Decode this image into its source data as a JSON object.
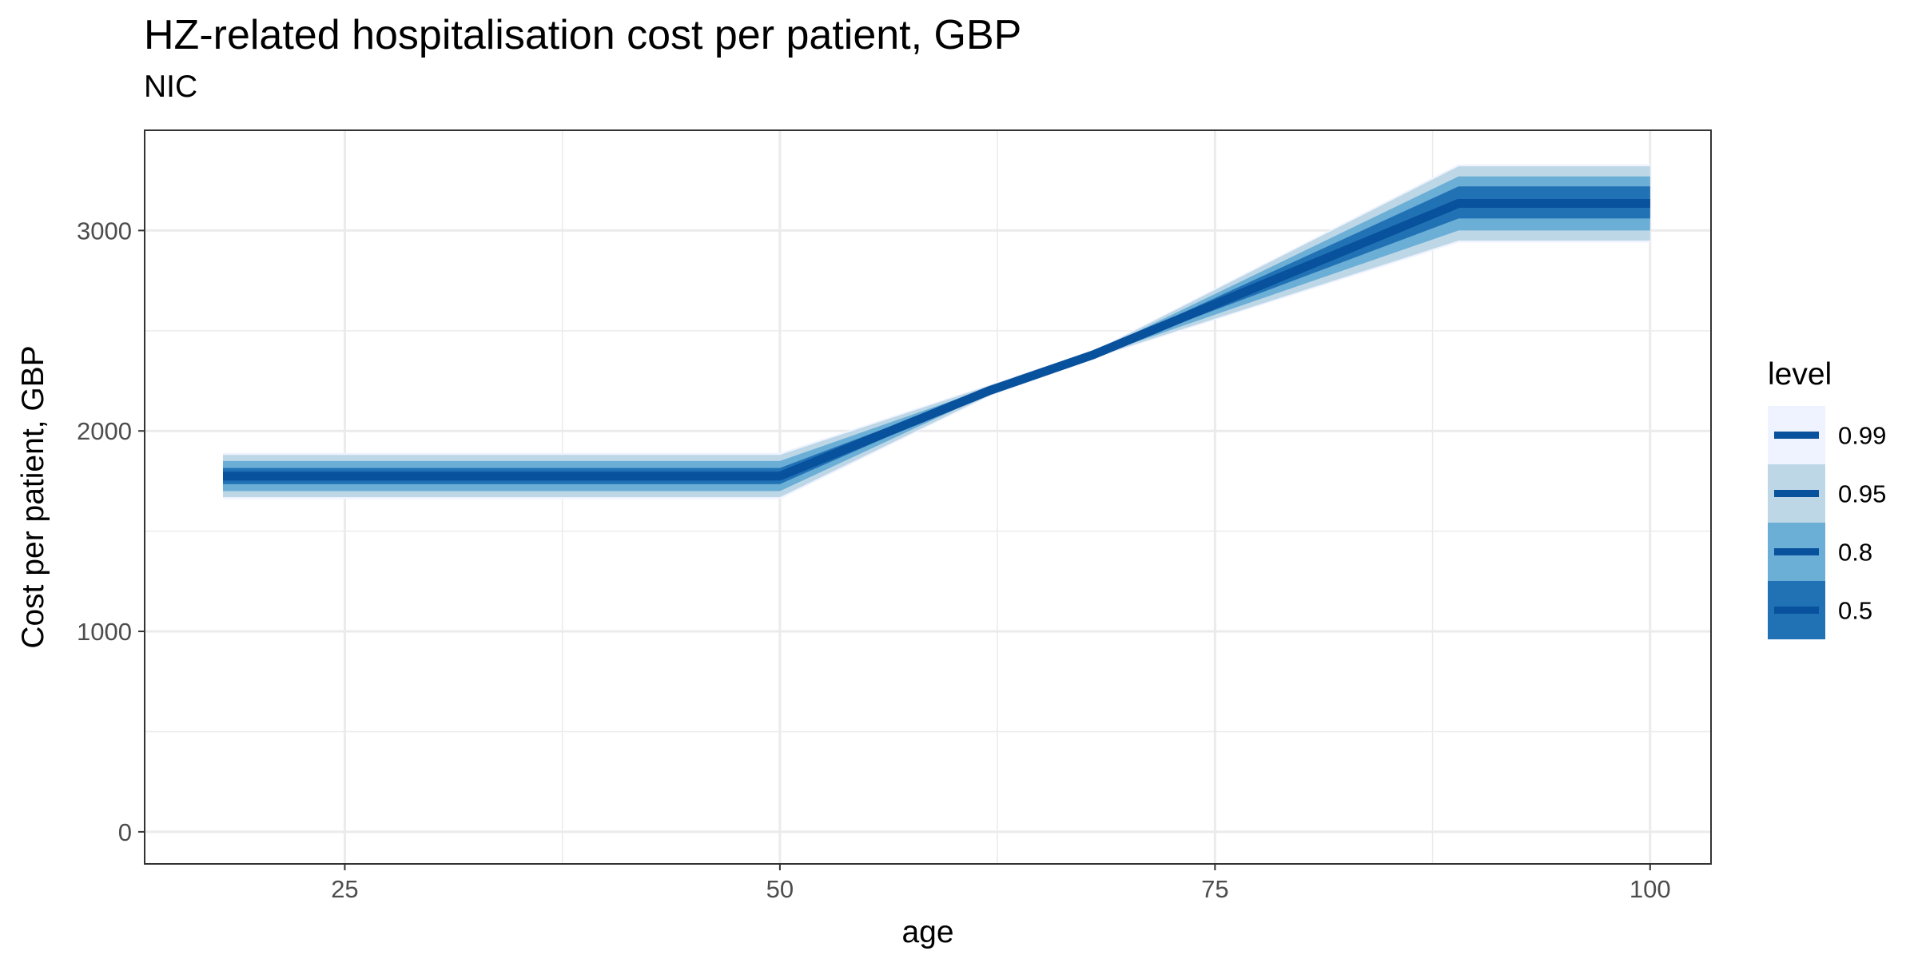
{
  "chart_data": {
    "type": "area",
    "title": "HZ-related hospitalisation cost per patient, GBP",
    "subtitle": "NIC",
    "xlabel": "age",
    "ylabel": "Cost per patient, GBP",
    "xlim": [
      13.5,
      103.5
    ],
    "ylim": [
      -160,
      3500
    ],
    "x_ticks": [
      25,
      50,
      75,
      100
    ],
    "y_ticks": [
      0,
      1000,
      2000,
      3000
    ],
    "grid": true,
    "legend": {
      "title": "level",
      "position": "right",
      "entries": [
        {
          "label": "0.99",
          "color": "#EFF3FF"
        },
        {
          "label": "0.95",
          "color": "#BDD7E7"
        },
        {
          "label": "0.8",
          "color": "#6BAED6"
        },
        {
          "label": "0.5",
          "color": "#2171B5"
        }
      ]
    },
    "line_color": "#08519C",
    "x": [
      18,
      50,
      62,
      68,
      89,
      100
    ],
    "median": [
      1775,
      1775,
      2200,
      2380,
      3135,
      3135
    ],
    "bands": [
      {
        "level": "0.99",
        "color": "#EFF3FF",
        "lower": [
          1660,
          1660,
          2170,
          2360,
          2940,
          2940
        ],
        "upper": [
          1890,
          1890,
          2230,
          2400,
          3330,
          3330
        ]
      },
      {
        "level": "0.95",
        "color": "#BDD7E7",
        "lower": [
          1670,
          1670,
          2175,
          2365,
          2950,
          2950
        ],
        "upper": [
          1880,
          1880,
          2225,
          2395,
          3320,
          3320
        ]
      },
      {
        "level": "0.8",
        "color": "#6BAED6",
        "lower": [
          1700,
          1700,
          2185,
          2370,
          3000,
          3000
        ],
        "upper": [
          1850,
          1850,
          2215,
          2390,
          3270,
          3270
        ]
      },
      {
        "level": "0.5",
        "color": "#2171B5",
        "lower": [
          1735,
          1735,
          2192,
          2375,
          3060,
          3060
        ],
        "upper": [
          1815,
          1815,
          2208,
          2385,
          3220,
          3220
        ]
      }
    ]
  }
}
